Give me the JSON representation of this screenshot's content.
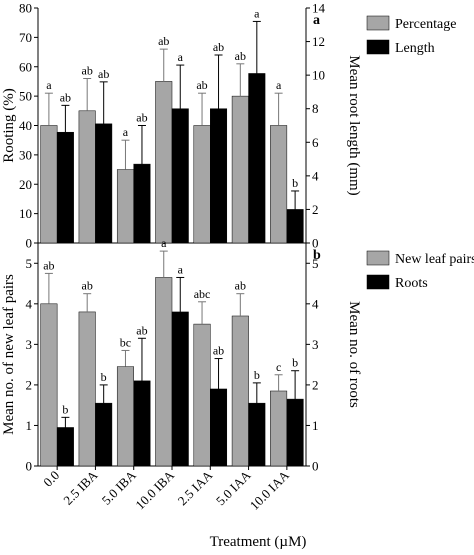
{
  "chart_data": [
    {
      "type": "bar",
      "panel_label": "a",
      "categories": [
        "0.0",
        "2.5 IBA",
        "5.0 IBA",
        "10.0 IBA",
        "2.5 IAA",
        "5.0 IAA",
        "10.0 IAA"
      ],
      "ylabel": "Rooting (%)",
      "y2label": "Mean root length (mm)",
      "ylim": [
        0,
        80
      ],
      "y2lim": [
        0,
        14
      ],
      "yticks": [
        0,
        10,
        20,
        30,
        40,
        50,
        60,
        70,
        80
      ],
      "y2ticks": [
        0,
        2,
        4,
        6,
        8,
        10,
        12,
        14
      ],
      "legend_position": "top-right",
      "series": [
        {
          "name": "Percentage",
          "axis": "left",
          "color": "#a6a6a6",
          "values": [
            40,
            45,
            25,
            55,
            40,
            50,
            40
          ],
          "errors": [
            11,
            11,
            10,
            11,
            11,
            11,
            11
          ],
          "labels": [
            "a",
            "ab",
            "a",
            "ab",
            "ab",
            "ab",
            "a"
          ]
        },
        {
          "name": "Length",
          "axis": "right",
          "color": "#000000",
          "values": [
            6.6,
            7.1,
            4.7,
            8.0,
            8.0,
            10.1,
            2.0
          ],
          "errors": [
            1.6,
            2.5,
            2.3,
            2.6,
            3.2,
            3.1,
            1.1
          ],
          "labels": [
            "ab",
            "ab",
            "ab",
            "a",
            "ab",
            "a",
            "b"
          ]
        }
      ]
    },
    {
      "type": "bar",
      "panel_label": "b",
      "categories": [
        "0.0",
        "2.5 IBA",
        "5.0 IBA",
        "10.0 IBA",
        "2.5 IAA",
        "5.0 IAA",
        "10.0 IAA"
      ],
      "xlabel": "Treatment (µM)",
      "ylabel": "Mean no. of new leaf pairs",
      "y2label": "Mean no. of roots",
      "ylim": [
        0,
        5.5
      ],
      "y2lim": [
        0,
        5.5
      ],
      "yticks": [
        0,
        1,
        2,
        3,
        4,
        5
      ],
      "y2ticks": [
        0,
        1,
        2,
        3,
        4,
        5
      ],
      "legend_position": "top-right",
      "series": [
        {
          "name": "New leaf pairs",
          "axis": "left",
          "color": "#a6a6a6",
          "values": [
            4.0,
            3.8,
            2.45,
            4.65,
            3.5,
            3.7,
            1.85
          ],
          "errors": [
            0.75,
            0.45,
            0.4,
            0.65,
            0.55,
            0.55,
            0.4
          ],
          "labels": [
            "ab",
            "ab",
            "bc",
            "a",
            "abc",
            "ab",
            "c"
          ]
        },
        {
          "name": "Roots",
          "axis": "right",
          "color": "#000000",
          "values": [
            0.95,
            1.55,
            2.1,
            3.8,
            1.9,
            1.55,
            1.65
          ],
          "errors": [
            0.25,
            0.45,
            1.05,
            0.85,
            0.75,
            0.5,
            0.7
          ],
          "labels": [
            "b",
            "b",
            "ab",
            "a",
            "ab",
            "b",
            "b"
          ]
        }
      ]
    }
  ]
}
